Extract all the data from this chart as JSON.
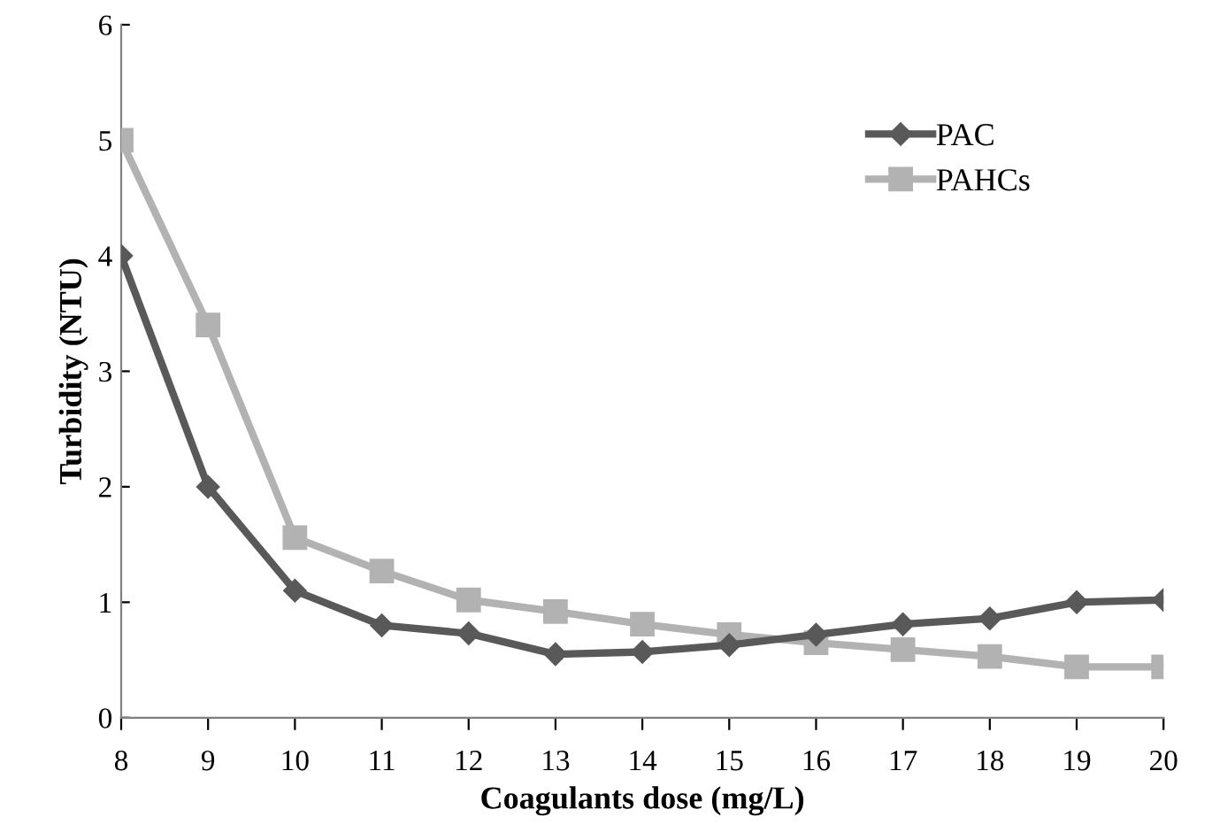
{
  "chart_data": {
    "type": "line",
    "xlabel": "Coagulants dose (mg/L)",
    "ylabel": "Turbidity (NTU)",
    "x": [
      8,
      9,
      10,
      11,
      12,
      13,
      14,
      15,
      16,
      17,
      18,
      19,
      20
    ],
    "series": [
      {
        "name": "PAC",
        "color": "#595959",
        "marker": "diamond",
        "values": [
          4.0,
          2.0,
          1.1,
          0.8,
          0.73,
          0.55,
          0.57,
          0.63,
          0.72,
          0.81,
          0.86,
          1.0,
          1.02
        ]
      },
      {
        "name": "PAHCs",
        "color": "#b2b2b2",
        "marker": "square",
        "values": [
          5.0,
          3.4,
          1.56,
          1.27,
          1.02,
          0.92,
          0.81,
          0.72,
          0.65,
          0.59,
          0.53,
          0.44,
          0.44
        ]
      }
    ],
    "xlim": [
      8,
      20
    ],
    "xticks": [
      8,
      9,
      10,
      11,
      12,
      13,
      14,
      15,
      16,
      17,
      18,
      19,
      20
    ],
    "ylim": [
      0,
      6
    ],
    "yticks": [
      0,
      1,
      2,
      3,
      4,
      5,
      6
    ],
    "grid": false,
    "legend": "top right",
    "line_style": "solid"
  }
}
